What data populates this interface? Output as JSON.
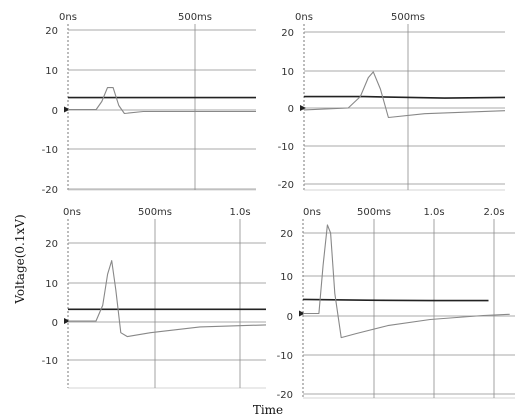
{
  "figure": {
    "ylabel": "Voltage(0.1xV)",
    "xlabel": "Time"
  },
  "chart_data": [
    {
      "type": "line",
      "title": "",
      "x_ticks": [
        "0ns",
        "500ms"
      ],
      "y_ticks": [
        "20",
        "10",
        "0",
        "-10",
        "-20"
      ],
      "ylim": [
        -20,
        20
      ],
      "x_unit": "ms",
      "xlim": [
        0,
        1000
      ],
      "series": [
        {
          "color": "#222222",
          "x": [
            0,
            200,
            700,
            1000
          ],
          "y": [
            3,
            3,
            3,
            3
          ]
        },
        {
          "color": "#888888",
          "x": [
            0,
            150,
            180,
            210,
            240,
            270,
            300,
            400,
            1000
          ],
          "y": [
            0,
            0,
            2,
            5.5,
            5.5,
            1,
            -1,
            -0.5,
            -0.5
          ]
        }
      ]
    },
    {
      "type": "line",
      "title": "",
      "x_ticks": [
        "0ns",
        "500ms"
      ],
      "y_ticks": [
        "20",
        "10",
        "0",
        "-10",
        "-20"
      ],
      "ylim": [
        -20,
        20
      ],
      "x_unit": "ms",
      "xlim": [
        0,
        1000
      ],
      "series": [
        {
          "color": "#222222",
          "x": [
            0,
            300,
            700,
            1000
          ],
          "y": [
            3,
            3,
            2.6,
            2.8
          ]
        },
        {
          "color": "#888888",
          "x": [
            0,
            220,
            280,
            320,
            345,
            380,
            420,
            600,
            1000
          ],
          "y": [
            -0.5,
            0,
            3,
            8,
            9.5,
            5,
            -2.5,
            -1.5,
            -0.7
          ]
        }
      ]
    },
    {
      "type": "line",
      "title": "",
      "x_ticks": [
        "0ns",
        "500ms",
        "1.0s"
      ],
      "y_ticks": [
        "20",
        "10",
        "0",
        "-10"
      ],
      "ylim": [
        -15,
        25
      ],
      "x_unit": "ms",
      "xlim": [
        0,
        1200
      ],
      "series": [
        {
          "color": "#222222",
          "x": [
            0,
            400,
            800,
            1200
          ],
          "y": [
            3,
            3,
            3,
            3
          ]
        },
        {
          "color": "#888888",
          "x": [
            0,
            170,
            210,
            240,
            265,
            290,
            320,
            360,
            500,
            800,
            1200
          ],
          "y": [
            0,
            0,
            4,
            12,
            15.5,
            8,
            -3,
            -4,
            -3,
            -1.5,
            -1
          ]
        }
      ]
    },
    {
      "type": "line",
      "title": "",
      "x_ticks": [
        "0ns",
        "500ms",
        "1.0s",
        "2.0s"
      ],
      "y_ticks": [
        "20",
        "10",
        "0",
        "-10",
        "-20"
      ],
      "ylim": [
        -20,
        25
      ],
      "x_unit": "ms",
      "xlim": [
        0,
        2000
      ],
      "series": [
        {
          "color": "#222222",
          "x": [
            0,
            600,
            1200,
            1750
          ],
          "y": [
            3.5,
            3.3,
            3.2,
            3.2
          ]
        },
        {
          "color": "#888888",
          "x": [
            0,
            150,
            190,
            230,
            260,
            300,
            360,
            500,
            800,
            1200,
            1700,
            1950
          ],
          "y": [
            0,
            0,
            12,
            22,
            20,
            5,
            -6,
            -5,
            -3,
            -1.5,
            -0.5,
            -0.2
          ]
        }
      ]
    }
  ]
}
